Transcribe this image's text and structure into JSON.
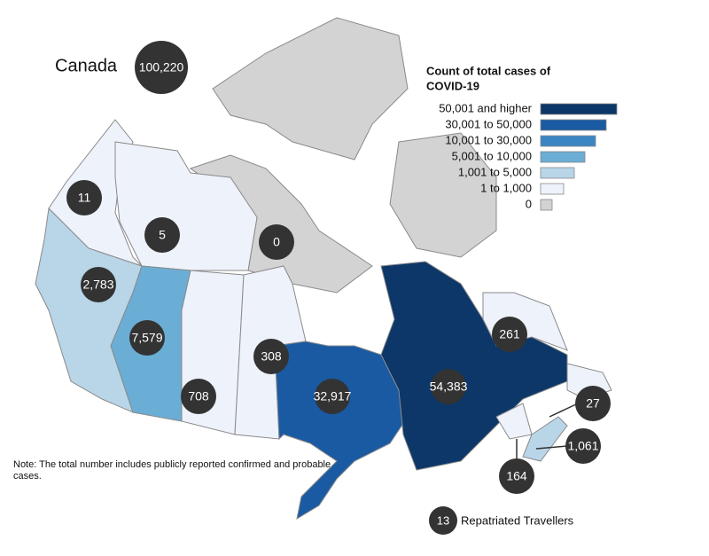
{
  "country": {
    "name": "Canada",
    "total": "100,220"
  },
  "legend": {
    "title": [
      "Count of total cases of",
      "COVID-19"
    ],
    "items": [
      {
        "label": "50,001 and higher",
        "color": "#0c3768"
      },
      {
        "label": "30,001 to 50,000",
        "color": "#1a5aa2"
      },
      {
        "label": "10,001 to 30,000",
        "color": "#3a86c4"
      },
      {
        "label": "5,001 to 10,000",
        "color": "#6aaed6"
      },
      {
        "label": "1,001 to 5,000",
        "color": "#b9d5e8"
      },
      {
        "label": "1 to 1,000",
        "color": "#eef2fb"
      },
      {
        "label": "0",
        "color": "#d3d3d3"
      }
    ]
  },
  "regions": [
    {
      "label": "11"
    },
    {
      "label": "5"
    },
    {
      "label": "0"
    },
    {
      "label": "2,783"
    },
    {
      "label": "7,579"
    },
    {
      "label": "708"
    },
    {
      "label": "308"
    },
    {
      "label": "32,917"
    },
    {
      "label": "54,383"
    },
    {
      "label": "261"
    },
    {
      "label": "27"
    },
    {
      "label": "1,061"
    },
    {
      "label": "164"
    }
  ],
  "repatriated": {
    "count": "13",
    "label": "Repatriated Travellers"
  },
  "note": "Note: The total number includes publicly reported confirmed and probable cases."
}
